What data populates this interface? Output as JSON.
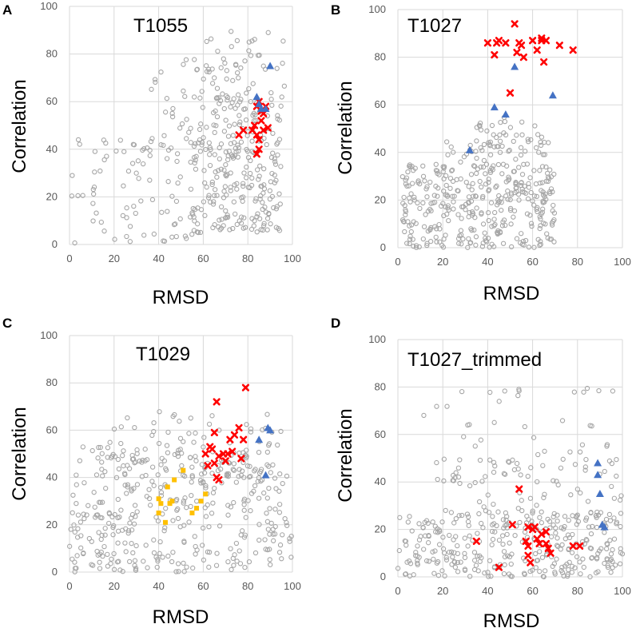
{
  "colors": {
    "background": "#ffffff",
    "other_models": "#a6a6a6",
    "red_models": "#ff0000",
    "blue_models": "#4472c4",
    "yellow_models": "#ffc000",
    "grid": "#d9d9d9",
    "tick_text": "#595959"
  },
  "chart_data": [
    {
      "panel": "A",
      "type": "scatter",
      "title": "T1055",
      "xlabel": "RMSD",
      "ylabel": "Correlation",
      "xlim": [
        0,
        100
      ],
      "ylim": [
        0,
        100
      ],
      "xticks": [
        0,
        20,
        40,
        60,
        80,
        100
      ],
      "yticks": [
        0,
        20,
        40,
        60,
        80,
        100
      ],
      "series": [
        {
          "name": "blue",
          "marker": "triangle",
          "points": [
            [
              90,
              75
            ],
            [
              84,
              62
            ],
            [
              85,
              59
            ],
            [
              86,
              57
            ],
            [
              88,
              57
            ]
          ]
        },
        {
          "name": "red",
          "marker": "x",
          "points": [
            [
              84,
              58
            ],
            [
              85,
              60
            ],
            [
              86,
              56
            ],
            [
              87,
              55
            ],
            [
              88,
              58
            ],
            [
              86,
              52
            ],
            [
              83,
              50
            ],
            [
              82,
              48
            ],
            [
              78,
              48
            ],
            [
              76,
              46
            ],
            [
              84,
              46
            ],
            [
              85,
              44
            ],
            [
              87,
              48
            ],
            [
              89,
              49
            ],
            [
              85,
              40
            ],
            [
              84,
              38
            ]
          ]
        },
        {
          "name": "gray",
          "marker": "circle",
          "generated": true,
          "count": 420,
          "seed": 11,
          "note": "dense gray cloud, concentrated at RMSD 60-95 and Correlation 5-60; sparse at low RMSD; a few outliers near 80-92",
          "clusters": [
            {
              "n": 240,
              "x": [
                55,
                95
              ],
              "y": [
                5,
                62
              ]
            },
            {
              "n": 80,
              "x": [
                0,
                55
              ],
              "y": [
                0,
                45
              ]
            },
            {
              "n": 60,
              "x": [
                35,
                80
              ],
              "y": [
                35,
                82
              ]
            },
            {
              "n": 40,
              "x": [
                60,
                98
              ],
              "y": [
                60,
                90
              ]
            }
          ]
        }
      ]
    },
    {
      "panel": "B",
      "type": "scatter",
      "title": "T1027",
      "xlabel": "RMSD",
      "ylabel": "Correlation",
      "xlim": [
        0,
        100
      ],
      "ylim": [
        0,
        100
      ],
      "xticks": [
        0,
        20,
        40,
        60,
        80,
        100
      ],
      "yticks": [
        0,
        20,
        40,
        60,
        80,
        100
      ],
      "series": [
        {
          "name": "blue",
          "marker": "triangle",
          "points": [
            [
              32,
              41
            ],
            [
              43,
              59
            ],
            [
              48,
              56
            ],
            [
              52,
              76
            ],
            [
              69,
              64
            ]
          ]
        },
        {
          "name": "red",
          "marker": "x",
          "points": [
            [
              40,
              86
            ],
            [
              44,
              86
            ],
            [
              45,
              87
            ],
            [
              48,
              86
            ],
            [
              52,
              94
            ],
            [
              54,
              86
            ],
            [
              55,
              85
            ],
            [
              60,
              87
            ],
            [
              62,
              83
            ],
            [
              64,
              87
            ],
            [
              64,
              88
            ],
            [
              66,
              87
            ],
            [
              72,
              85
            ],
            [
              78,
              83
            ],
            [
              43,
              81
            ],
            [
              53,
              82
            ],
            [
              56,
              80
            ],
            [
              65,
              78
            ],
            [
              50,
              65
            ]
          ]
        },
        {
          "name": "gray",
          "marker": "circle",
          "generated": true,
          "count": 420,
          "seed": 22,
          "note": "gray cloud concentrated at RMSD 0-70, Correlation 0-45",
          "clusters": [
            {
              "n": 300,
              "x": [
                2,
                70
              ],
              "y": [
                0,
                35
              ]
            },
            {
              "n": 80,
              "x": [
                20,
                68
              ],
              "y": [
                20,
                45
              ]
            },
            {
              "n": 40,
              "x": [
                35,
                65
              ],
              "y": [
                40,
                55
              ]
            }
          ]
        }
      ]
    },
    {
      "panel": "C",
      "type": "scatter",
      "title": "T1029",
      "xlabel": "RMSD",
      "ylabel": "Correlation",
      "xlim": [
        0,
        100
      ],
      "ylim": [
        0,
        100
      ],
      "xticks": [
        0,
        20,
        40,
        60,
        80,
        100
      ],
      "yticks": [
        0,
        20,
        40,
        60,
        80,
        100
      ],
      "series": [
        {
          "name": "blue",
          "marker": "triangle",
          "points": [
            [
              85,
              56
            ],
            [
              89,
              61
            ],
            [
              90,
              60
            ],
            [
              88,
              41
            ]
          ]
        },
        {
          "name": "yellow",
          "marker": "square",
          "points": [
            [
              40,
              31
            ],
            [
              41,
              29
            ],
            [
              43,
              21
            ],
            [
              44,
              36
            ],
            [
              45,
              29
            ],
            [
              47,
              39
            ],
            [
              51,
              43
            ],
            [
              55,
              25
            ],
            [
              57,
              27
            ],
            [
              59,
              30
            ],
            [
              61,
              33
            ],
            [
              40,
              25
            ],
            [
              46,
              30
            ]
          ]
        },
        {
          "name": "red",
          "marker": "x",
          "points": [
            [
              66,
              72
            ],
            [
              79,
              78
            ],
            [
              74,
              58
            ],
            [
              76,
              61
            ],
            [
              78,
              56
            ],
            [
              72,
              56
            ],
            [
              63,
              53
            ],
            [
              65,
              59
            ],
            [
              61,
              50
            ],
            [
              64,
              52
            ],
            [
              67,
              49
            ],
            [
              69,
              50
            ],
            [
              71,
              50
            ],
            [
              73,
              51
            ],
            [
              65,
              46
            ],
            [
              62,
              45
            ],
            [
              66,
              40
            ],
            [
              67,
              39
            ],
            [
              77,
              48
            ],
            [
              70,
              47
            ]
          ]
        },
        {
          "name": "gray",
          "marker": "circle",
          "generated": true,
          "count": 440,
          "seed": 33,
          "note": "broad gray cloud across whole RMSD range, Correlation 0-70",
          "clusters": [
            {
              "n": 280,
              "x": [
                0,
                100
              ],
              "y": [
                0,
                55
              ]
            },
            {
              "n": 120,
              "x": [
                20,
                95
              ],
              "y": [
                30,
                68
              ]
            },
            {
              "n": 40,
              "x": [
                0,
                30
              ],
              "y": [
                0,
                25
              ]
            }
          ]
        }
      ]
    },
    {
      "panel": "D",
      "type": "scatter",
      "title": "T1027_trimmed",
      "xlabel": "RMSD",
      "ylabel": "Correlation",
      "xlim": [
        0,
        100
      ],
      "ylim": [
        0,
        100
      ],
      "xticks": [
        0,
        20,
        40,
        60,
        80,
        100
      ],
      "yticks": [
        0,
        20,
        40,
        60,
        80,
        100
      ],
      "series": [
        {
          "name": "blue",
          "marker": "triangle",
          "points": [
            [
              89,
              48
            ],
            [
              89,
              43
            ],
            [
              90,
              35
            ],
            [
              91,
              22
            ],
            [
              92,
              21
            ]
          ]
        },
        {
          "name": "red",
          "marker": "x",
          "points": [
            [
              54,
              37
            ],
            [
              51,
              22
            ],
            [
              45,
              4
            ],
            [
              57,
              15
            ],
            [
              58,
              13
            ],
            [
              58,
              21
            ],
            [
              59,
              6
            ],
            [
              60,
              20
            ],
            [
              61,
              21
            ],
            [
              63,
              14
            ],
            [
              64,
              18
            ],
            [
              66,
              19
            ],
            [
              66,
              14
            ],
            [
              67,
              12
            ],
            [
              68,
              10
            ],
            [
              58,
              9
            ],
            [
              62,
              16
            ],
            [
              78,
              13
            ],
            [
              81,
              13
            ],
            [
              35,
              15
            ]
          ]
        },
        {
          "name": "gray",
          "marker": "circle",
          "generated": true,
          "count": 430,
          "seed": 44,
          "note": "gray cloud concentrated Correlation 0-30 across full RMSD range, sparse outliers up to ~82",
          "clusters": [
            {
              "n": 300,
              "x": [
                0,
                100
              ],
              "y": [
                0,
                28
              ]
            },
            {
              "n": 80,
              "x": [
                15,
                100
              ],
              "y": [
                20,
                50
              ]
            },
            {
              "n": 50,
              "x": [
                10,
                100
              ],
              "y": [
                40,
                82
              ]
            }
          ]
        }
      ]
    }
  ]
}
